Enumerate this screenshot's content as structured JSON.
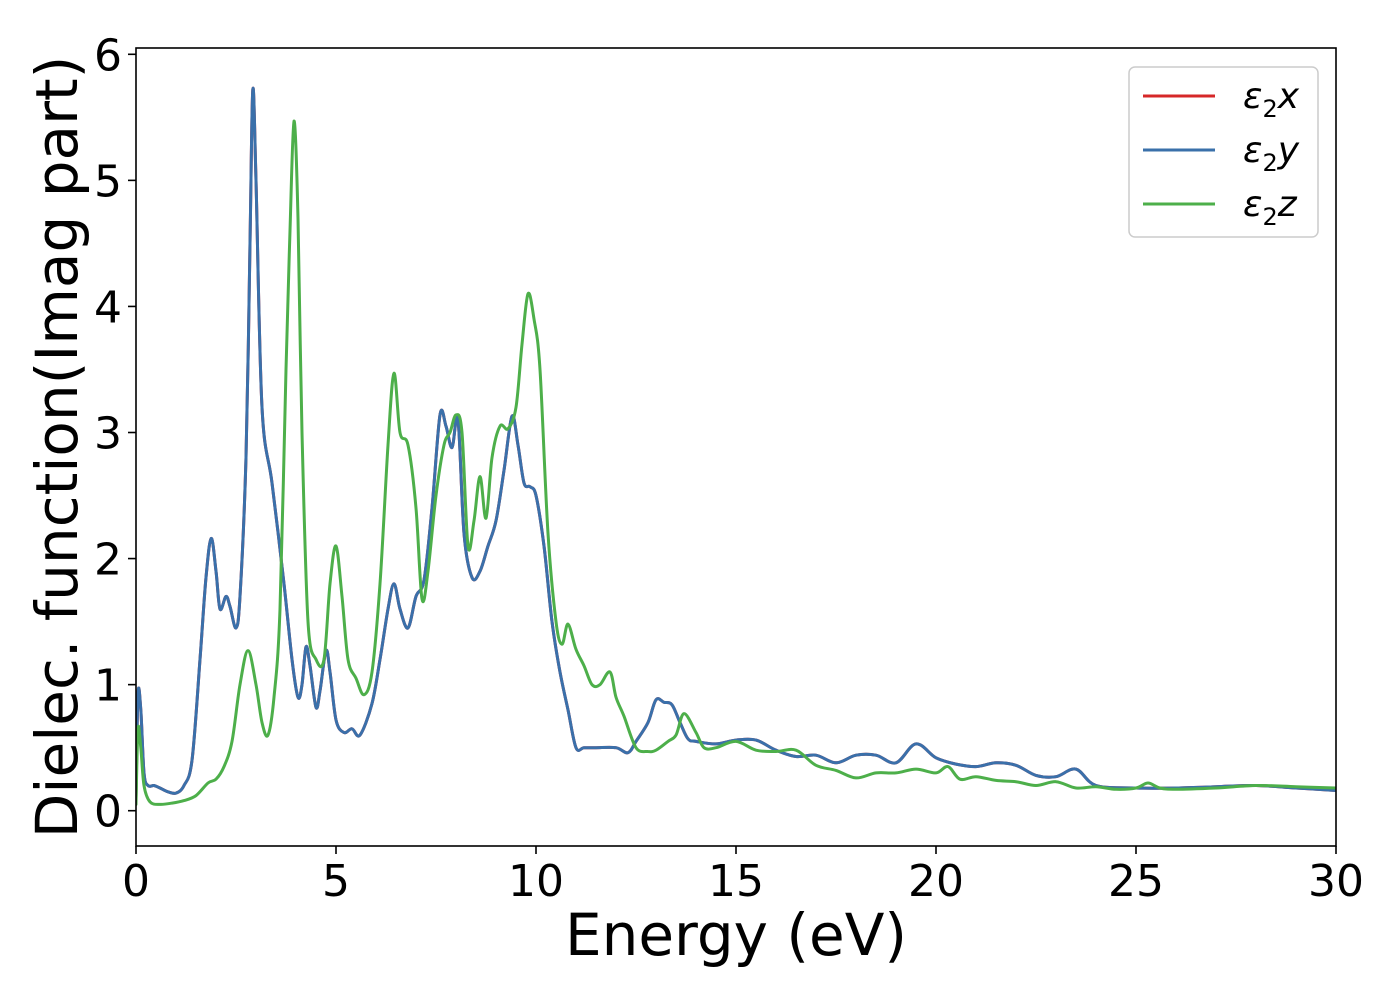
{
  "chart_data": {
    "type": "line",
    "title": "",
    "xlabel": "Energy (eV)",
    "ylabel": "Dielec. function(Imag part)",
    "xlim": [
      0,
      30
    ],
    "ylim": [
      -0.28,
      6.05
    ],
    "xticks": [
      0,
      5,
      10,
      15,
      20,
      25,
      30
    ],
    "yticks": [
      0,
      1,
      2,
      3,
      4,
      5,
      6
    ],
    "grid": false,
    "legend_position": "top-right",
    "series": [
      {
        "name": "ε2x",
        "legend_base": "ε",
        "legend_sub": "2",
        "legend_var": "x",
        "color": "#d62728",
        "x": [
          0,
          0.05,
          0.12,
          0.2,
          0.3,
          0.45,
          0.6,
          0.8,
          1.0,
          1.2,
          1.4,
          1.6,
          1.75,
          1.88,
          2.0,
          2.1,
          2.25,
          2.35,
          2.5,
          2.6,
          2.75,
          2.85,
          2.92,
          3.0,
          3.15,
          3.4,
          3.7,
          3.9,
          4.05,
          4.15,
          4.25,
          4.35,
          4.5,
          4.6,
          4.75,
          4.85,
          5.0,
          5.2,
          5.4,
          5.6,
          5.9,
          6.1,
          6.3,
          6.45,
          6.6,
          6.8,
          7.0,
          7.2,
          7.4,
          7.6,
          7.75,
          7.9,
          8.05,
          8.2,
          8.4,
          8.6,
          8.8,
          9.0,
          9.2,
          9.4,
          9.55,
          9.7,
          9.85,
          10.0,
          10.2,
          10.4,
          10.6,
          10.8,
          11.0,
          11.2,
          11.5,
          12.0,
          12.3,
          12.5,
          12.8,
          13.0,
          13.2,
          13.4,
          13.6,
          13.8,
          14.0,
          14.5,
          15.0,
          15.5,
          16.0,
          16.5,
          17.0,
          17.5,
          18.0,
          18.5,
          19.0,
          19.5,
          20.0,
          20.5,
          21.0,
          21.5,
          22.0,
          22.5,
          23.0,
          23.5,
          24.0,
          25.0,
          26.0,
          27.0,
          28.0,
          29.0,
          30.0
        ],
        "values": [
          0.1,
          0.93,
          0.8,
          0.3,
          0.2,
          0.2,
          0.18,
          0.15,
          0.14,
          0.2,
          0.4,
          1.2,
          1.85,
          2.16,
          1.9,
          1.6,
          1.7,
          1.62,
          1.45,
          1.7,
          2.8,
          4.5,
          5.72,
          5.0,
          3.2,
          2.6,
          1.8,
          1.2,
          0.9,
          1.0,
          1.3,
          1.15,
          0.82,
          0.95,
          1.27,
          1.1,
          0.72,
          0.62,
          0.65,
          0.6,
          0.85,
          1.2,
          1.6,
          1.8,
          1.6,
          1.45,
          1.7,
          1.83,
          2.4,
          3.14,
          3.05,
          2.88,
          3.1,
          2.2,
          1.85,
          1.9,
          2.1,
          2.3,
          2.7,
          3.13,
          2.9,
          2.6,
          2.57,
          2.5,
          2.1,
          1.5,
          1.1,
          0.8,
          0.5,
          0.5,
          0.5,
          0.5,
          0.46,
          0.55,
          0.7,
          0.88,
          0.86,
          0.84,
          0.7,
          0.57,
          0.55,
          0.53,
          0.56,
          0.56,
          0.48,
          0.43,
          0.44,
          0.38,
          0.44,
          0.44,
          0.38,
          0.53,
          0.42,
          0.37,
          0.35,
          0.38,
          0.36,
          0.28,
          0.27,
          0.33,
          0.2,
          0.18,
          0.18,
          0.19,
          0.2,
          0.18,
          0.16
        ]
      },
      {
        "name": "ε2y",
        "legend_base": "ε",
        "legend_sub": "2",
        "legend_var": "y",
        "color": "#3a70aa",
        "x": [
          0,
          0.05,
          0.12,
          0.2,
          0.3,
          0.45,
          0.6,
          0.8,
          1.0,
          1.2,
          1.4,
          1.6,
          1.75,
          1.88,
          2.0,
          2.1,
          2.25,
          2.35,
          2.5,
          2.6,
          2.75,
          2.85,
          2.92,
          3.0,
          3.15,
          3.4,
          3.7,
          3.9,
          4.05,
          4.15,
          4.25,
          4.35,
          4.5,
          4.6,
          4.75,
          4.85,
          5.0,
          5.2,
          5.4,
          5.6,
          5.9,
          6.1,
          6.3,
          6.45,
          6.6,
          6.8,
          7.0,
          7.2,
          7.4,
          7.6,
          7.75,
          7.9,
          8.05,
          8.2,
          8.4,
          8.6,
          8.8,
          9.0,
          9.2,
          9.4,
          9.55,
          9.7,
          9.85,
          10.0,
          10.2,
          10.4,
          10.6,
          10.8,
          11.0,
          11.2,
          11.5,
          12.0,
          12.3,
          12.5,
          12.8,
          13.0,
          13.2,
          13.4,
          13.6,
          13.8,
          14.0,
          14.5,
          15.0,
          15.5,
          16.0,
          16.5,
          17.0,
          17.5,
          18.0,
          18.5,
          19.0,
          19.5,
          20.0,
          20.5,
          21.0,
          21.5,
          22.0,
          22.5,
          23.0,
          23.5,
          24.0,
          25.0,
          26.0,
          27.0,
          28.0,
          29.0,
          30.0
        ],
        "values": [
          0.1,
          0.93,
          0.8,
          0.3,
          0.2,
          0.2,
          0.18,
          0.15,
          0.14,
          0.2,
          0.4,
          1.2,
          1.85,
          2.16,
          1.9,
          1.6,
          1.7,
          1.62,
          1.45,
          1.7,
          2.8,
          4.5,
          5.72,
          5.0,
          3.2,
          2.6,
          1.8,
          1.2,
          0.9,
          1.0,
          1.3,
          1.15,
          0.82,
          0.95,
          1.27,
          1.1,
          0.72,
          0.62,
          0.65,
          0.6,
          0.85,
          1.2,
          1.6,
          1.8,
          1.6,
          1.45,
          1.7,
          1.83,
          2.4,
          3.14,
          3.05,
          2.88,
          3.1,
          2.2,
          1.85,
          1.9,
          2.1,
          2.3,
          2.7,
          3.13,
          2.9,
          2.6,
          2.57,
          2.5,
          2.1,
          1.5,
          1.1,
          0.8,
          0.5,
          0.5,
          0.5,
          0.5,
          0.46,
          0.55,
          0.7,
          0.88,
          0.86,
          0.84,
          0.7,
          0.57,
          0.55,
          0.53,
          0.56,
          0.56,
          0.48,
          0.43,
          0.44,
          0.38,
          0.44,
          0.44,
          0.38,
          0.53,
          0.42,
          0.37,
          0.35,
          0.38,
          0.36,
          0.28,
          0.27,
          0.33,
          0.2,
          0.18,
          0.18,
          0.19,
          0.2,
          0.18,
          0.16
        ]
      },
      {
        "name": "ε2z",
        "legend_base": "ε",
        "legend_sub": "2",
        "legend_var": "z",
        "color": "#4daf4a",
        "x": [
          0,
          0.05,
          0.12,
          0.2,
          0.35,
          0.6,
          0.9,
          1.2,
          1.5,
          1.8,
          2.0,
          2.2,
          2.4,
          2.6,
          2.8,
          3.0,
          3.15,
          3.3,
          3.45,
          3.6,
          3.75,
          3.85,
          3.95,
          4.05,
          4.15,
          4.3,
          4.5,
          4.7,
          4.85,
          5.0,
          5.15,
          5.3,
          5.5,
          5.7,
          5.9,
          6.1,
          6.3,
          6.45,
          6.6,
          6.8,
          7.0,
          7.15,
          7.3,
          7.5,
          7.7,
          7.85,
          8.0,
          8.15,
          8.3,
          8.45,
          8.6,
          8.75,
          8.9,
          9.1,
          9.3,
          9.5,
          9.65,
          9.8,
          9.95,
          10.1,
          10.3,
          10.5,
          10.65,
          10.8,
          11.0,
          11.2,
          11.4,
          11.6,
          11.85,
          12.0,
          12.2,
          12.5,
          12.8,
          13.0,
          13.3,
          13.5,
          13.7,
          14.0,
          14.2,
          14.5,
          15.0,
          15.5,
          16.0,
          16.5,
          17.0,
          17.5,
          18.0,
          18.5,
          19.0,
          19.5,
          20.0,
          20.3,
          20.6,
          21.0,
          21.5,
          22.0,
          22.5,
          23.0,
          23.5,
          24.0,
          24.5,
          25.0,
          25.3,
          25.6,
          26.0,
          27.0,
          28.0,
          29.0,
          30.0
        ],
        "values": [
          0.05,
          0.65,
          0.5,
          0.2,
          0.07,
          0.05,
          0.06,
          0.08,
          0.12,
          0.22,
          0.25,
          0.35,
          0.55,
          1.0,
          1.27,
          1.0,
          0.7,
          0.6,
          0.9,
          1.6,
          3.5,
          4.6,
          5.47,
          4.7,
          3.0,
          1.5,
          1.2,
          1.2,
          1.8,
          2.1,
          1.7,
          1.2,
          1.05,
          0.92,
          1.1,
          1.8,
          2.9,
          3.47,
          3.0,
          2.9,
          2.4,
          1.68,
          1.9,
          2.5,
          2.9,
          3.0,
          3.14,
          3.0,
          2.1,
          2.3,
          2.65,
          2.32,
          2.8,
          3.05,
          3.03,
          3.2,
          3.7,
          4.1,
          3.9,
          3.5,
          2.2,
          1.5,
          1.32,
          1.48,
          1.28,
          1.15,
          1.0,
          1.0,
          1.1,
          0.9,
          0.75,
          0.5,
          0.47,
          0.48,
          0.55,
          0.6,
          0.77,
          0.62,
          0.5,
          0.5,
          0.55,
          0.48,
          0.47,
          0.48,
          0.36,
          0.32,
          0.26,
          0.3,
          0.3,
          0.33,
          0.3,
          0.35,
          0.25,
          0.27,
          0.24,
          0.23,
          0.2,
          0.23,
          0.18,
          0.19,
          0.17,
          0.18,
          0.22,
          0.18,
          0.17,
          0.18,
          0.2,
          0.19,
          0.18
        ]
      }
    ]
  }
}
